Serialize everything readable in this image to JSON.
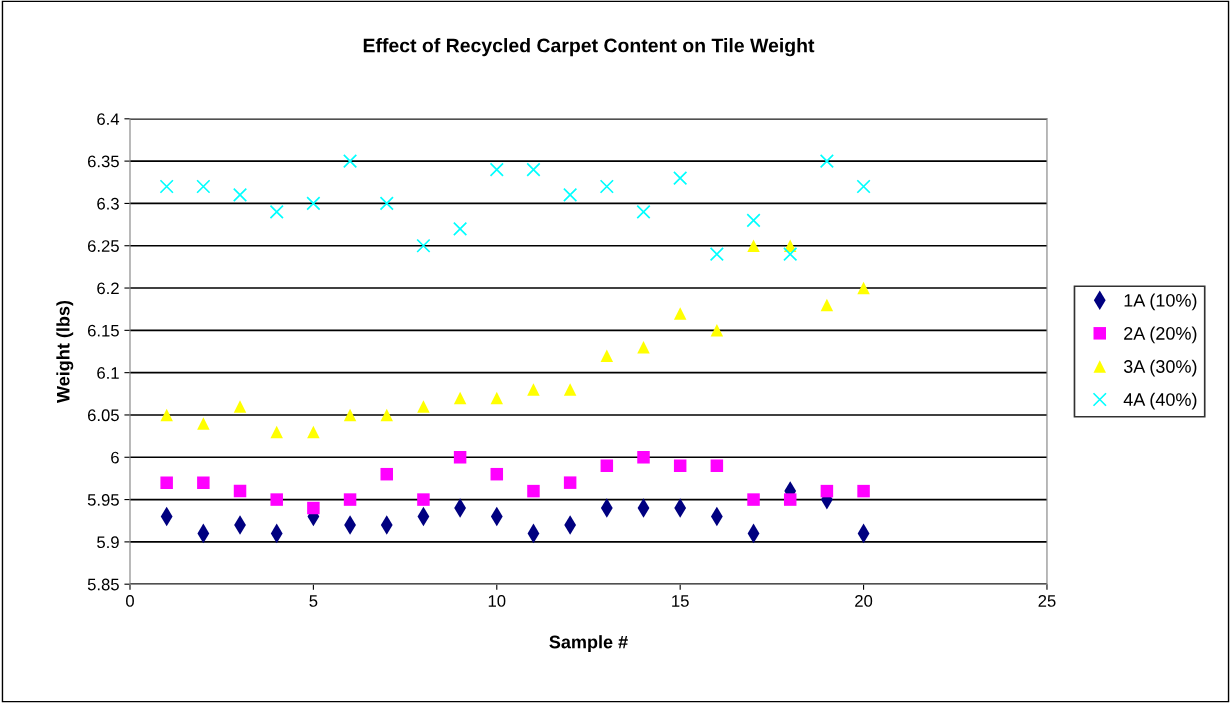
{
  "chart_data": {
    "type": "scatter",
    "title": "Effect of Recycled Carpet Content on Tile Weight",
    "xlabel": "Sample #",
    "ylabel": "Weight (lbs)",
    "x": [
      1,
      2,
      3,
      4,
      5,
      6,
      7,
      8,
      9,
      10,
      11,
      12,
      13,
      14,
      15,
      16,
      17,
      18,
      19,
      20
    ],
    "series": [
      {
        "name": "1A (10%)",
        "color": "#000080",
        "marker": "diamond",
        "values": [
          5.93,
          5.91,
          5.92,
          5.91,
          5.93,
          5.92,
          5.92,
          5.93,
          5.94,
          5.93,
          5.91,
          5.92,
          5.94,
          5.94,
          5.94,
          5.93,
          5.91,
          5.96,
          5.95,
          5.91
        ]
      },
      {
        "name": "2A (20%)",
        "color": "#ff00ff",
        "marker": "square",
        "values": [
          5.97,
          5.97,
          5.96,
          5.95,
          5.94,
          5.95,
          5.98,
          5.95,
          6.0,
          5.98,
          5.96,
          5.97,
          5.99,
          6.0,
          5.99,
          5.99,
          5.95,
          5.95,
          5.96,
          5.96
        ]
      },
      {
        "name": "3A (30%)",
        "color": "#ffff00",
        "marker": "triangle",
        "values": [
          6.05,
          6.04,
          6.06,
          6.03,
          6.03,
          6.05,
          6.05,
          6.06,
          6.07,
          6.07,
          6.08,
          6.08,
          6.12,
          6.13,
          6.17,
          6.15,
          6.25,
          6.25,
          6.18,
          6.2
        ]
      },
      {
        "name": "4A (40%)",
        "color": "#00ffff",
        "marker": "cross",
        "values": [
          6.32,
          6.32,
          6.31,
          6.29,
          6.3,
          6.35,
          6.3,
          6.25,
          6.27,
          6.34,
          6.34,
          6.31,
          6.32,
          6.29,
          6.33,
          6.24,
          6.28,
          6.24,
          6.35,
          6.32
        ]
      }
    ],
    "xlim": [
      0,
      25
    ],
    "xticks": [
      0,
      5,
      10,
      15,
      20,
      25
    ],
    "ylim": [
      5.85,
      6.4
    ],
    "yticks": [
      5.85,
      5.9,
      5.95,
      6,
      6.05,
      6.1,
      6.15,
      6.2,
      6.25,
      6.3,
      6.35,
      6.4
    ],
    "grid": "y",
    "legend": "right"
  }
}
